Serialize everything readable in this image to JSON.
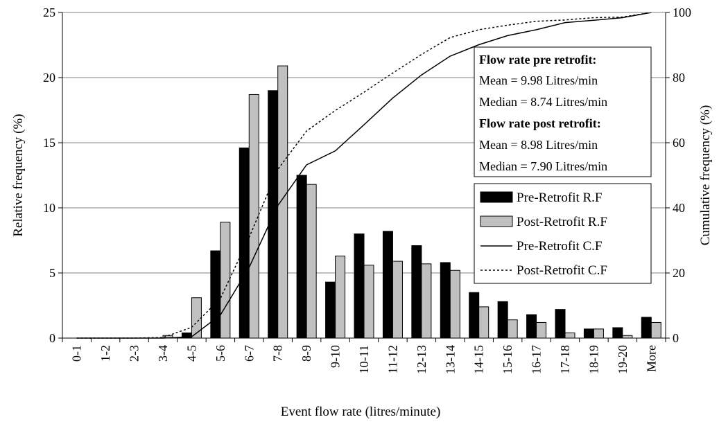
{
  "chart_data": {
    "type": "bar",
    "xlabel": "Event flow rate (litres/minute)",
    "ylabel": "Relative frequency (%)",
    "y2label": "Cumulative frequency (%)",
    "ylim": [
      0,
      25
    ],
    "y2lim": [
      0,
      100
    ],
    "yticks": [
      0,
      5,
      10,
      15,
      20,
      25
    ],
    "y2ticks": [
      0,
      20,
      40,
      60,
      80,
      100
    ],
    "grid": true,
    "categories": [
      "0-1",
      "1-2",
      "2-3",
      "3-4",
      "4-5",
      "5-6",
      "6-7",
      "7-8",
      "8-9",
      "9-10",
      "10-11",
      "11-12",
      "12-13",
      "13-14",
      "14-15",
      "15-16",
      "16-17",
      "17-18",
      "18-19",
      "19-20",
      "More"
    ],
    "series": [
      {
        "name": "Pre-Retrofit R.F",
        "kind": "bar",
        "color": "#000000",
        "values": [
          0,
          0,
          0,
          0,
          0.4,
          6.7,
          14.6,
          19.0,
          12.5,
          4.3,
          8.0,
          8.2,
          7.1,
          5.8,
          3.5,
          2.8,
          1.8,
          2.2,
          0.7,
          0.8,
          1.6
        ]
      },
      {
        "name": "Post-Retrofit R.F",
        "kind": "bar",
        "color": "#c0c0c0",
        "values": [
          0,
          0,
          0,
          0.2,
          3.1,
          8.9,
          18.7,
          20.9,
          11.8,
          6.3,
          5.6,
          5.9,
          5.7,
          5.2,
          2.4,
          1.4,
          1.2,
          0.4,
          0.7,
          0.2,
          1.2
        ]
      },
      {
        "name": "Pre-Retrofit C.F",
        "kind": "line",
        "axis": "right",
        "style": "solid",
        "values": [
          0,
          0,
          0,
          0,
          0.4,
          7.1,
          21.7,
          40.7,
          53.2,
          57.5,
          65.5,
          73.7,
          80.8,
          86.6,
          90.1,
          92.9,
          94.7,
          96.9,
          97.6,
          98.4,
          100
        ]
      },
      {
        "name": "Post-Retrofit C.F",
        "kind": "line",
        "axis": "right",
        "style": "dotted",
        "values": [
          0,
          0,
          0,
          0.2,
          3.3,
          12.2,
          30.9,
          51.8,
          63.6,
          69.9,
          75.5,
          81.4,
          87.1,
          92.3,
          94.7,
          96.1,
          97.3,
          97.7,
          98.4,
          98.6,
          100
        ]
      }
    ],
    "legend_position": "right-middle"
  },
  "stats_box": {
    "pre_title": "Flow rate pre retrofit:",
    "pre_mean": "Mean = 9.98 Litres/min",
    "pre_median": "Median = 8.74 Litres/min",
    "post_title": "Flow rate post retrofit:",
    "post_mean": "Mean  = 8.98 Litres/min",
    "post_median": "Median  = 7.90 Litres/min"
  }
}
